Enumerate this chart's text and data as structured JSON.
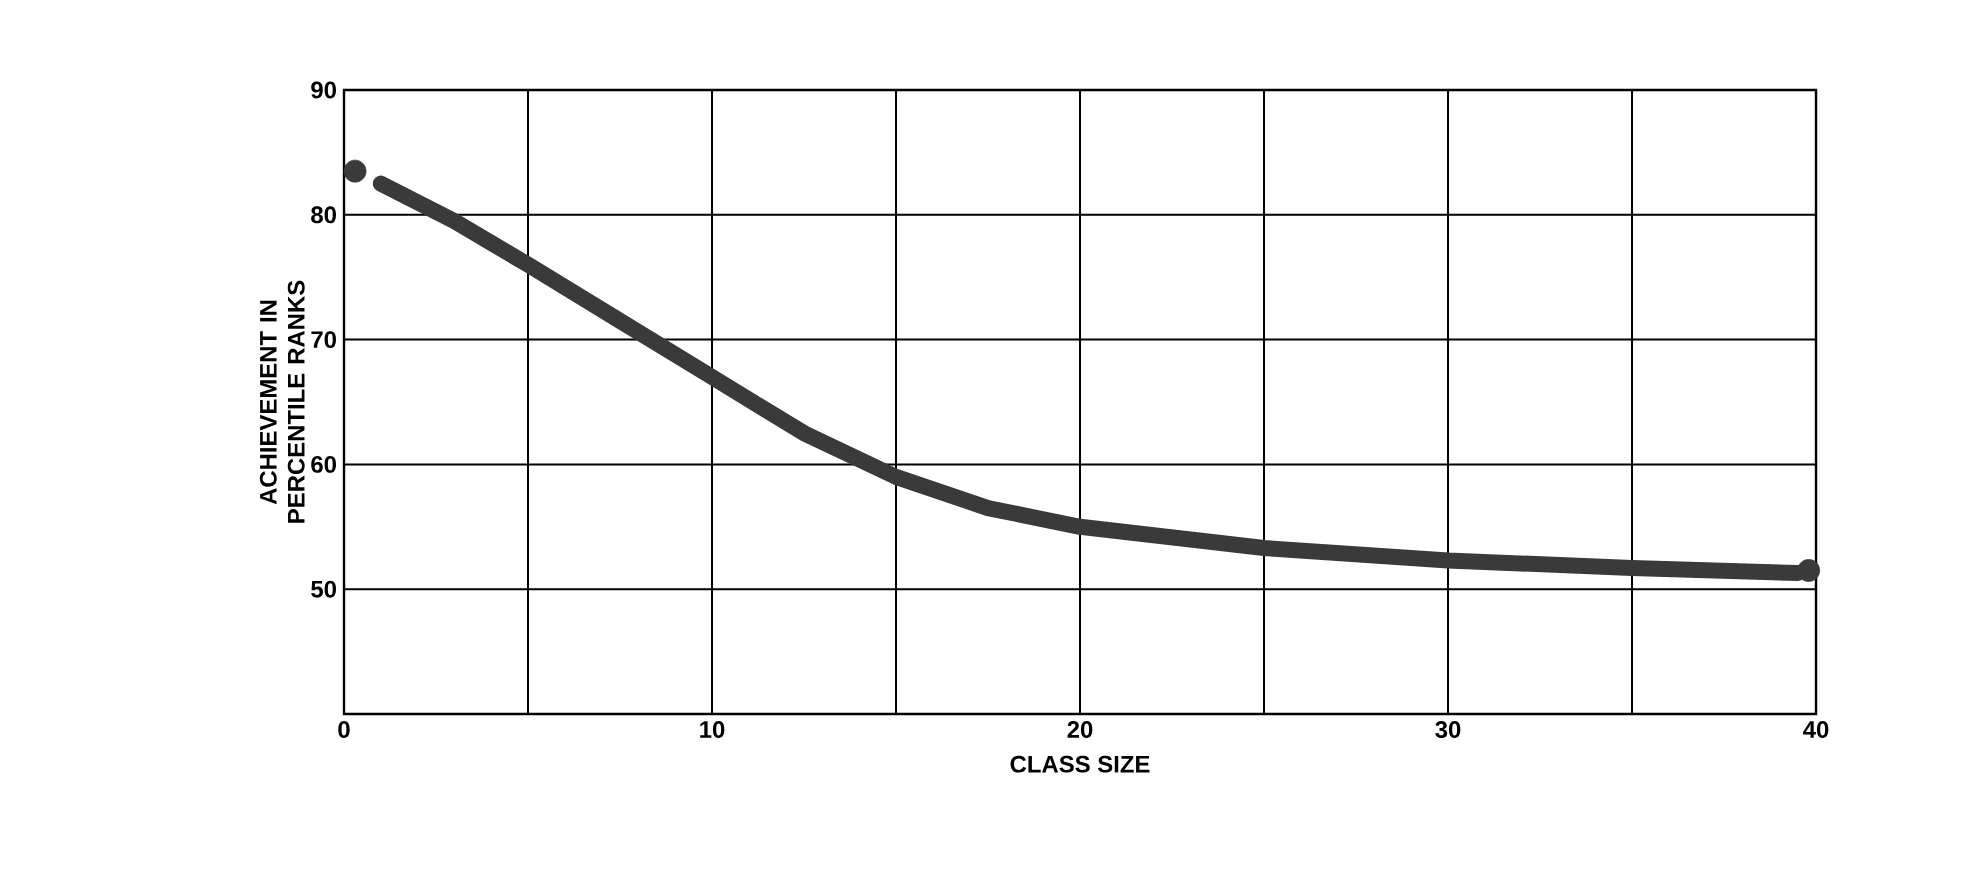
{
  "chart_data": {
    "type": "line",
    "xlabel": "CLASS SIZE",
    "ylabel": "ACHIEVEMENT IN PERCENTILE RANKS",
    "xlim": [
      0,
      40
    ],
    "ylim": [
      40,
      90
    ],
    "xticks": [
      0,
      {
        "value": 5,
        "label": null
      },
      10,
      {
        "value": 15,
        "label": null
      },
      20,
      {
        "value": 25,
        "label": null
      },
      30,
      {
        "value": 35,
        "label": null
      },
      40
    ],
    "yticks": [
      {
        "value": 40,
        "label": null
      },
      50,
      60,
      70,
      80,
      90
    ],
    "grid": true,
    "line_style": "solid",
    "series": [
      {
        "color": "#3a3a3a",
        "x": [
          1,
          3,
          5,
          7.5,
          10,
          12.5,
          15,
          17.5,
          20,
          25,
          30,
          35,
          39.5
        ],
        "values": [
          82.5,
          79.5,
          76,
          71.5,
          67,
          62.5,
          59,
          56.5,
          55,
          53.3,
          52.3,
          51.7,
          51.3
        ]
      },
      {
        "type": "scatter",
        "marker": "circle",
        "color": "#3a3a3a",
        "x": [
          0.3,
          39.8
        ],
        "values": [
          83.5,
          51.5
        ]
      }
    ]
  }
}
